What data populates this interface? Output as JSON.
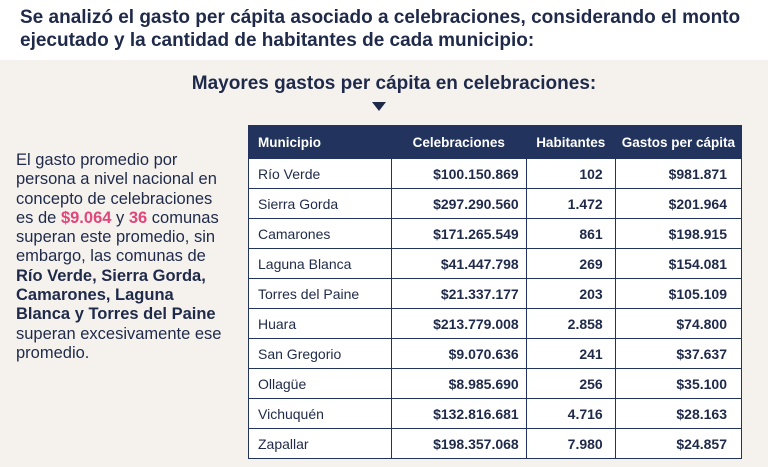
{
  "headline": "Se analizó el gasto per cápita asociado a celebraciones, considerando el monto ejecutado y la cantidad de habitantes de cada municipio:",
  "subtitle": "Mayores gastos per cápita en celebraciones:",
  "side": {
    "p1": "El gasto promedio por persona a nivel nacional en concepto de celebraciones es de ",
    "avg_value": "$9.064",
    "p2": " y ",
    "count": "36",
    "p3": " comunas superan este promedio, sin embargo, las comunas de ",
    "bold_names": "Río Verde, Sierra Gorda, Camarones, Laguna Blanca y Torres del Paine",
    "p4": " superan excesivamente ese promedio."
  },
  "table": {
    "headers": [
      "Municipio",
      "Celebraciones",
      "Habitantes",
      "Gastos per cápita"
    ],
    "rows": [
      [
        "Río Verde",
        "$100.150.869",
        "102",
        "$981.871"
      ],
      [
        "Sierra Gorda",
        "$297.290.560",
        "1.472",
        "$201.964"
      ],
      [
        "Camarones",
        "$171.265.549",
        "861",
        "$198.915"
      ],
      [
        "Laguna Blanca",
        "$41.447.798",
        "269",
        "$154.081"
      ],
      [
        "Torres del Paine",
        "$21.337.177",
        "203",
        "$105.109"
      ],
      [
        "Huara",
        "$213.779.008",
        "2.858",
        "$74.800"
      ],
      [
        "San Gregorio",
        "$9.070.636",
        "241",
        "$37.637"
      ],
      [
        "Ollagüe",
        "$8.985.690",
        "256",
        "$35.100"
      ],
      [
        "Vichuquén",
        "$132.816.681",
        "4.716",
        "$28.163"
      ],
      [
        "Zapallar",
        "$198.357.068",
        "7.980",
        "$24.857"
      ]
    ]
  },
  "colors": {
    "navy": "#22345e",
    "highlight": "#e0457b",
    "background": "#f5f2ee"
  }
}
